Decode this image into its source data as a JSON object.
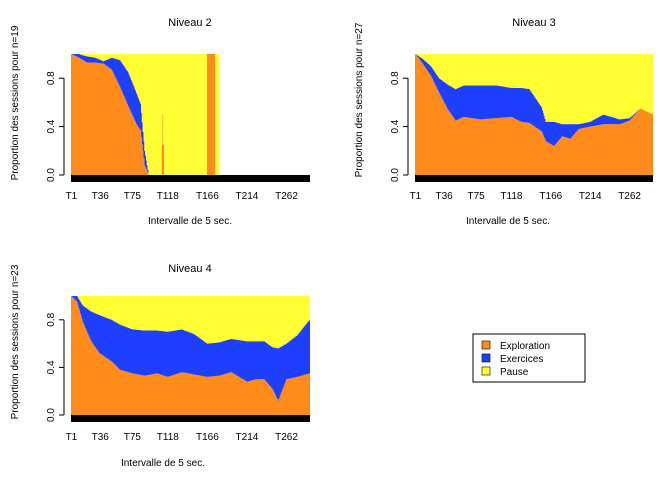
{
  "colors": {
    "exploration": "#ff8c1a",
    "exercices": "#1f3fff",
    "pause": "#ffff33"
  },
  "legend": {
    "entries": [
      {
        "label": "Exploration",
        "color": "#ff8c1a"
      },
      {
        "label": "Exercices",
        "color": "#1f3fff"
      },
      {
        "label": "Pause",
        "color": "#ffff33"
      }
    ],
    "placement": "bottom-right"
  },
  "chart_data": [
    {
      "type": "area",
      "stacked": true,
      "title": "Niveau 2",
      "xlabel": "Intervalle de 5 sec.",
      "ylabel": "Proportion des sessions pour n=19",
      "x_ticks": [
        "T1",
        "T36",
        "T75",
        "T118",
        "T166",
        "T214",
        "T262"
      ],
      "y_ticks": [
        "0.0",
        "0.4",
        "0.8"
      ],
      "ylim": [
        0,
        1
      ],
      "n_intervals": 290,
      "series": [
        {
          "name": "Exploration",
          "points": [
            [
              1,
              1.0
            ],
            [
              10,
              0.97
            ],
            [
              20,
              0.93
            ],
            [
              30,
              0.93
            ],
            [
              40,
              0.92
            ],
            [
              50,
              0.87
            ],
            [
              60,
              0.73
            ],
            [
              70,
              0.57
            ],
            [
              80,
              0.42
            ],
            [
              85,
              0.37
            ],
            [
              90,
              0.08
            ],
            [
              95,
              0.0
            ],
            [
              110,
              0.0
            ],
            [
              112,
              0.5
            ],
            [
              114,
              0.0
            ],
            [
              165,
              0.0
            ],
            [
              166,
              1.0
            ],
            [
              175,
              1.0
            ],
            [
              176,
              0.0
            ],
            [
              290,
              0.0
            ]
          ]
        },
        {
          "name": "Exercices",
          "points": [
            [
              1,
              0.0
            ],
            [
              10,
              0.03
            ],
            [
              20,
              0.05
            ],
            [
              30,
              0.04
            ],
            [
              40,
              0.02
            ],
            [
              50,
              0.1
            ],
            [
              60,
              0.22
            ],
            [
              70,
              0.28
            ],
            [
              80,
              0.26
            ],
            [
              85,
              0.22
            ],
            [
              90,
              0.12
            ],
            [
              95,
              0.0
            ],
            [
              290,
              0.0
            ]
          ]
        },
        {
          "name": "Pause",
          "points": [
            [
              1,
              0.0
            ],
            [
              30,
              0.03
            ],
            [
              40,
              0.06
            ],
            [
              50,
              0.03
            ],
            [
              60,
              0.05
            ],
            [
              70,
              0.15
            ],
            [
              80,
              0.32
            ],
            [
              85,
              0.41
            ],
            [
              90,
              0.8
            ],
            [
              95,
              1.0
            ],
            [
              165,
              1.0
            ],
            [
              166,
              0.0
            ],
            [
              175,
              0.0
            ],
            [
              176,
              1.0
            ],
            [
              180,
              1.0
            ],
            [
              181,
              0.0
            ],
            [
              290,
              0.0
            ]
          ]
        }
      ]
    },
    {
      "type": "area",
      "stacked": true,
      "title": "Niveau 3",
      "xlabel": "Intervalle de 5 sec.",
      "ylabel": "Proportion des sessions pour n=27",
      "x_ticks": [
        "T1",
        "T36",
        "T75",
        "T118",
        "T166",
        "T214",
        "T262"
      ],
      "y_ticks": [
        "0.0",
        "0.4",
        "0.8"
      ],
      "ylim": [
        0,
        1
      ],
      "n_intervals": 290,
      "series": [
        {
          "name": "Exploration",
          "points": [
            [
              1,
              1.0
            ],
            [
              10,
              0.92
            ],
            [
              20,
              0.82
            ],
            [
              30,
              0.68
            ],
            [
              40,
              0.55
            ],
            [
              50,
              0.45
            ],
            [
              60,
              0.48
            ],
            [
              80,
              0.46
            ],
            [
              100,
              0.47
            ],
            [
              118,
              0.48
            ],
            [
              130,
              0.44
            ],
            [
              140,
              0.43
            ],
            [
              155,
              0.36
            ],
            [
              160,
              0.28
            ],
            [
              170,
              0.24
            ],
            [
              180,
              0.32
            ],
            [
              190,
              0.3
            ],
            [
              200,
              0.38
            ],
            [
              214,
              0.4
            ],
            [
              230,
              0.42
            ],
            [
              250,
              0.42
            ],
            [
              262,
              0.45
            ],
            [
              275,
              0.55
            ],
            [
              285,
              0.52
            ],
            [
              290,
              0.5
            ]
          ]
        },
        {
          "name": "Exercices",
          "points": [
            [
              1,
              0.0
            ],
            [
              10,
              0.04
            ],
            [
              20,
              0.08
            ],
            [
              30,
              0.12
            ],
            [
              40,
              0.2
            ],
            [
              50,
              0.26
            ],
            [
              60,
              0.26
            ],
            [
              80,
              0.28
            ],
            [
              100,
              0.27
            ],
            [
              118,
              0.24
            ],
            [
              130,
              0.28
            ],
            [
              140,
              0.28
            ],
            [
              155,
              0.2
            ],
            [
              160,
              0.16
            ],
            [
              170,
              0.2
            ],
            [
              180,
              0.1
            ],
            [
              190,
              0.12
            ],
            [
              200,
              0.04
            ],
            [
              214,
              0.04
            ],
            [
              230,
              0.08
            ],
            [
              250,
              0.04
            ],
            [
              262,
              0.02
            ],
            [
              275,
              0.0
            ],
            [
              290,
              0.0
            ]
          ]
        },
        {
          "name": "Pause",
          "points": [
            [
              1,
              0.0
            ],
            [
              10,
              0.04
            ],
            [
              20,
              0.1
            ],
            [
              30,
              0.2
            ],
            [
              40,
              0.25
            ],
            [
              50,
              0.29
            ],
            [
              60,
              0.26
            ],
            [
              80,
              0.26
            ],
            [
              100,
              0.26
            ],
            [
              118,
              0.28
            ],
            [
              130,
              0.28
            ],
            [
              140,
              0.29
            ],
            [
              155,
              0.44
            ],
            [
              160,
              0.56
            ],
            [
              170,
              0.56
            ],
            [
              180,
              0.58
            ],
            [
              190,
              0.58
            ],
            [
              200,
              0.58
            ],
            [
              214,
              0.56
            ],
            [
              230,
              0.5
            ],
            [
              250,
              0.54
            ],
            [
              262,
              0.53
            ],
            [
              275,
              0.45
            ],
            [
              285,
              0.48
            ],
            [
              290,
              0.5
            ]
          ]
        }
      ]
    },
    {
      "type": "area",
      "stacked": true,
      "title": "Niveau 4",
      "xlabel": "Intervalle de 5 sec.",
      "ylabel": "Proportion des sessions pour n=23",
      "x_ticks": [
        "T1",
        "T36",
        "T75",
        "T118",
        "T166",
        "T214",
        "T262"
      ],
      "y_ticks": [
        "0.0",
        "0.4",
        "0.8"
      ],
      "ylim": [
        0,
        1
      ],
      "n_intervals": 290,
      "series": [
        {
          "name": "Exploration",
          "points": [
            [
              1,
              1.0
            ],
            [
              8,
              0.95
            ],
            [
              15,
              0.78
            ],
            [
              25,
              0.62
            ],
            [
              35,
              0.52
            ],
            [
              50,
              0.45
            ],
            [
              60,
              0.38
            ],
            [
              75,
              0.35
            ],
            [
              90,
              0.33
            ],
            [
              105,
              0.35
            ],
            [
              118,
              0.32
            ],
            [
              135,
              0.36
            ],
            [
              150,
              0.34
            ],
            [
              166,
              0.32
            ],
            [
              180,
              0.33
            ],
            [
              195,
              0.36
            ],
            [
              214,
              0.28
            ],
            [
              225,
              0.3
            ],
            [
              235,
              0.3
            ],
            [
              245,
              0.22
            ],
            [
              252,
              0.12
            ],
            [
              262,
              0.3
            ],
            [
              275,
              0.32
            ],
            [
              290,
              0.35
            ]
          ]
        },
        {
          "name": "Exercices",
          "points": [
            [
              1,
              0.0
            ],
            [
              8,
              0.05
            ],
            [
              15,
              0.14
            ],
            [
              25,
              0.25
            ],
            [
              35,
              0.32
            ],
            [
              50,
              0.35
            ],
            [
              60,
              0.38
            ],
            [
              75,
              0.37
            ],
            [
              90,
              0.38
            ],
            [
              105,
              0.36
            ],
            [
              118,
              0.38
            ],
            [
              135,
              0.36
            ],
            [
              150,
              0.34
            ],
            [
              166,
              0.28
            ],
            [
              180,
              0.28
            ],
            [
              195,
              0.28
            ],
            [
              214,
              0.34
            ],
            [
              225,
              0.32
            ],
            [
              235,
              0.32
            ],
            [
              245,
              0.35
            ],
            [
              252,
              0.44
            ],
            [
              262,
              0.3
            ],
            [
              275,
              0.35
            ],
            [
              290,
              0.45
            ]
          ]
        },
        {
          "name": "Pause",
          "points": [
            [
              1,
              0.0
            ],
            [
              8,
              0.0
            ],
            [
              15,
              0.08
            ],
            [
              25,
              0.13
            ],
            [
              35,
              0.16
            ],
            [
              50,
              0.2
            ],
            [
              60,
              0.24
            ],
            [
              75,
              0.28
            ],
            [
              90,
              0.29
            ],
            [
              105,
              0.29
            ],
            [
              118,
              0.3
            ],
            [
              135,
              0.28
            ],
            [
              150,
              0.32
            ],
            [
              166,
              0.4
            ],
            [
              180,
              0.39
            ],
            [
              195,
              0.36
            ],
            [
              214,
              0.38
            ],
            [
              225,
              0.38
            ],
            [
              235,
              0.38
            ],
            [
              245,
              0.43
            ],
            [
              252,
              0.44
            ],
            [
              262,
              0.4
            ],
            [
              275,
              0.33
            ],
            [
              290,
              0.2
            ]
          ]
        }
      ]
    }
  ]
}
